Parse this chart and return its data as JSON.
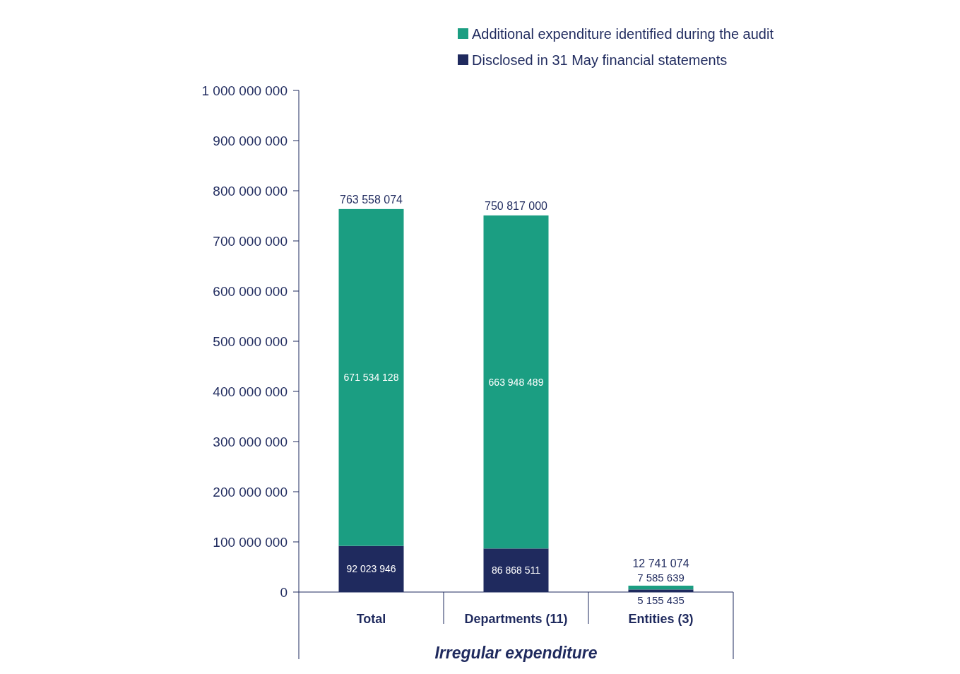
{
  "chart_data": {
    "type": "bar",
    "stacked": true,
    "xlabel": "Irregular expenditure",
    "categories": [
      "Total",
      "Departments (11)",
      "Entities (3)"
    ],
    "series": [
      {
        "name": "Disclosed in 31 May financial statements",
        "color": "#1f2a5e",
        "values": [
          92023946,
          86868511,
          5155435
        ]
      },
      {
        "name": "Additional expenditure identified during the audit",
        "color": "#1b9e82",
        "values": [
          671534128,
          663948489,
          7585639
        ]
      }
    ],
    "totals": [
      "763 558 074",
      "750 817 000",
      "12 741 074"
    ],
    "data_labels": true,
    "ylim": [
      0,
      1000000000
    ],
    "yticks": [
      {
        "value": 0,
        "label": "0"
      },
      {
        "value": 100000000,
        "label": "100 000 000"
      },
      {
        "value": 200000000,
        "label": "200 000 000"
      },
      {
        "value": 300000000,
        "label": "300 000 000"
      },
      {
        "value": 400000000,
        "label": "400 000 000"
      },
      {
        "value": 500000000,
        "label": "500 000 000"
      },
      {
        "value": 600000000,
        "label": "600 000 000"
      },
      {
        "value": 700000000,
        "label": "700 000 000"
      },
      {
        "value": 800000000,
        "label": "800 000 000"
      },
      {
        "value": 900000000,
        "label": "900 000 000"
      },
      {
        "value": 1000000000,
        "label": "1 000 000 000"
      }
    ],
    "legend": "top"
  }
}
